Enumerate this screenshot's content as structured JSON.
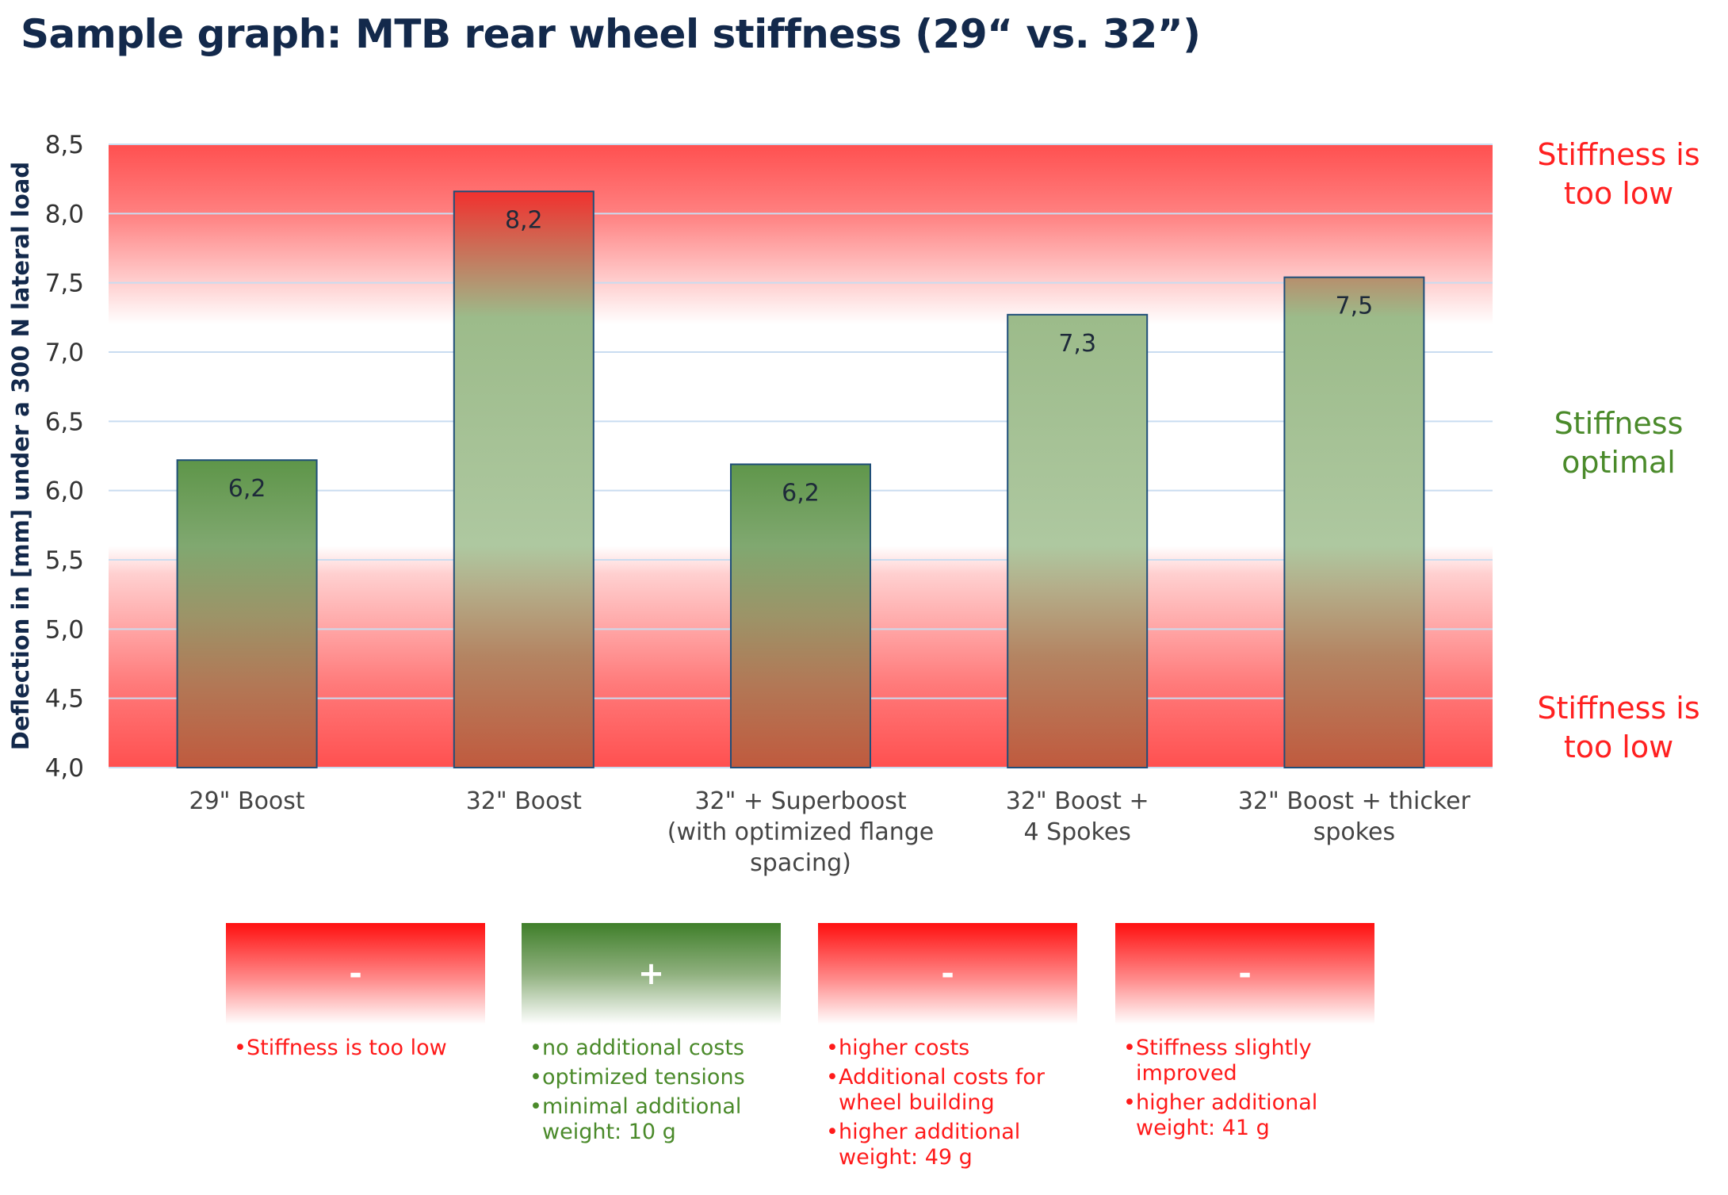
{
  "chart_data": {
    "type": "bar",
    "title": "Sample graph: MTB rear wheel stiffness (29“ vs. 32”)",
    "ylabel": "Deflection in [mm] under a 300 N lateral load",
    "xlabel": "",
    "ylim": [
      4.0,
      8.5
    ],
    "yticks": [
      "4,0",
      "4,5",
      "5,0",
      "5,5",
      "6,0",
      "6,5",
      "7,0",
      "7,5",
      "8,0",
      "8,5"
    ],
    "grid": true,
    "categories": [
      [
        "29\" Boost"
      ],
      [
        "32\" Boost"
      ],
      [
        "32\" + Superboost",
        "(with optimized flange",
        "spacing)"
      ],
      [
        "32\" Boost +",
        "4 Spokes"
      ],
      [
        "32\" Boost + thicker",
        "spokes"
      ]
    ],
    "values": [
      6.22,
      8.16,
      6.19,
      7.27,
      7.54
    ],
    "data_labels": [
      "6,2",
      "8,2",
      "6,2",
      "7,3",
      "7,5"
    ],
    "bar_fill": [
      "green",
      "mixed",
      "green",
      "mixed",
      "mixed"
    ],
    "zones": [
      {
        "label": [
          "Stiffness is",
          "too low"
        ],
        "color": "#ff2020",
        "position": "top"
      },
      {
        "label": [
          "Stiffness",
          "optimal"
        ],
        "color": "#4a8a2a",
        "position": "middle"
      },
      {
        "label": [
          "Stiffness is",
          "too low"
        ],
        "color": "#ff2020",
        "position": "bottom"
      }
    ]
  },
  "notes": [
    {
      "sign": "-",
      "tone": "red",
      "items": [
        "Stiffness is too low"
      ]
    },
    {
      "sign": "+",
      "tone": "green",
      "items": [
        "no additional costs",
        "optimized tensions",
        "minimal additional weight: 10 g"
      ]
    },
    {
      "sign": "-",
      "tone": "red",
      "items": [
        "higher costs",
        "Additional costs for wheel building",
        "higher additional weight: 49 g"
      ]
    },
    {
      "sign": "-",
      "tone": "red",
      "items": [
        "Stiffness slightly improved",
        "higher additional weight: 41 g"
      ]
    }
  ],
  "colors": {
    "title": "#13294b",
    "red": "#ff2020",
    "green": "#4a8a2a",
    "bar_border": "#1f4e79",
    "grid": "#c9dcf0"
  }
}
